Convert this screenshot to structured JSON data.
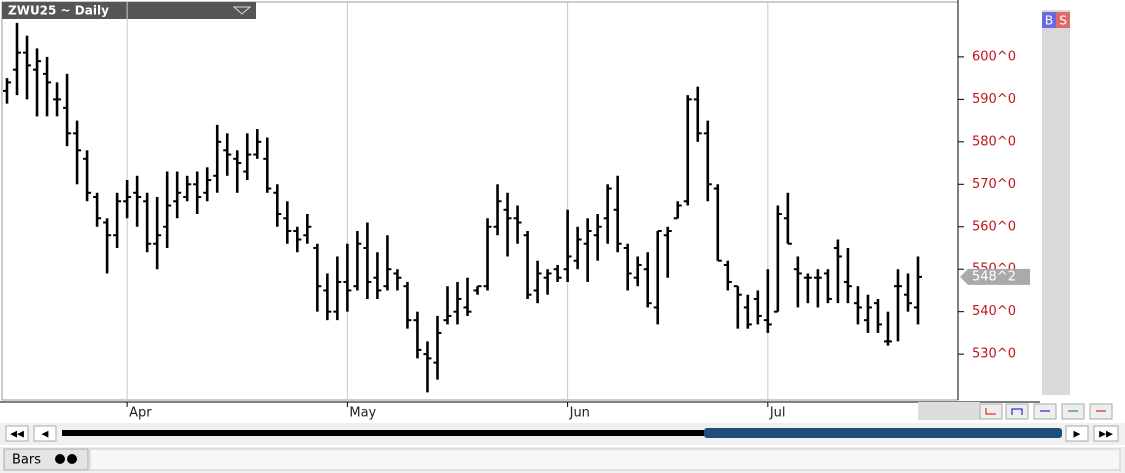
{
  "chart_data": {
    "type": "ohlc",
    "title": "ZWU25 ~ Daily",
    "categories": [
      null,
      null,
      null,
      null,
      null,
      null,
      null,
      null,
      null,
      null,
      null,
      null,
      "Apr",
      null,
      null,
      null,
      null,
      null,
      null,
      null,
      null,
      null,
      null,
      null,
      null,
      null,
      null,
      null,
      null,
      null,
      null,
      null,
      null,
      null,
      "May",
      null,
      null,
      null,
      null,
      null,
      null,
      null,
      null,
      null,
      null,
      null,
      null,
      null,
      null,
      null,
      null,
      null,
      null,
      null,
      null,
      null,
      "Jun",
      null,
      null,
      null,
      null,
      null,
      null,
      null,
      null,
      null,
      null,
      null,
      null,
      null,
      null,
      null,
      null,
      null,
      null,
      null,
      "Jul",
      null,
      null,
      null,
      null,
      null,
      null,
      null,
      null,
      null,
      null,
      null,
      null,
      null,
      null,
      null
    ],
    "open": [
      592,
      597,
      601,
      597,
      596,
      590,
      588,
      582,
      576,
      567,
      561,
      558,
      566,
      568,
      566,
      556,
      560,
      566,
      567,
      570,
      568,
      572,
      578,
      576,
      573,
      577,
      576,
      568,
      562,
      559,
      558,
      555,
      545,
      540,
      547,
      546,
      555,
      548,
      546,
      549,
      546,
      538,
      530,
      528,
      538,
      540,
      541,
      545,
      546,
      560,
      564,
      562,
      558,
      545,
      548,
      550,
      550,
      552,
      556,
      558,
      562,
      564,
      555,
      548,
      550,
      541,
      558,
      562,
      566,
      590,
      582,
      569,
      551,
      546,
      541,
      543,
      538,
      540,
      562,
      550,
      548,
      548,
      549,
      555,
      547,
      542,
      538,
      542,
      533,
      546,
      544,
      541
    ],
    "high": [
      595,
      608,
      605,
      602,
      600,
      594,
      596,
      585,
      578,
      568,
      562,
      568,
      571,
      572,
      568,
      567,
      573,
      573,
      572,
      573,
      574,
      584,
      582,
      578,
      582,
      583,
      581,
      570,
      566,
      560,
      563,
      556,
      549,
      553,
      556,
      559,
      561,
      554,
      558,
      550,
      547,
      540,
      533,
      539,
      546,
      547,
      548,
      546,
      562,
      570,
      568,
      565,
      559,
      552,
      550,
      551,
      564,
      560,
      562,
      563,
      570,
      572,
      556,
      553,
      554,
      559,
      560,
      566,
      591,
      593,
      585,
      570,
      552,
      546,
      544,
      545,
      550,
      565,
      568,
      553,
      549,
      550,
      550,
      557,
      555,
      546,
      544,
      543,
      540,
      550,
      549,
      553
    ],
    "low": [
      589,
      591,
      590,
      586,
      586,
      586,
      579,
      570,
      566,
      560,
      549,
      555,
      562,
      560,
      554,
      550,
      555,
      562,
      566,
      563,
      566,
      568,
      572,
      568,
      571,
      576,
      568,
      560,
      556,
      554,
      556,
      540,
      538,
      538,
      540,
      545,
      543,
      543,
      545,
      545,
      536,
      529,
      521,
      524,
      537,
      537,
      539,
      544,
      545,
      558,
      553,
      556,
      543,
      542,
      544,
      547,
      547,
      550,
      547,
      552,
      556,
      554,
      545,
      546,
      541,
      537,
      548,
      562,
      565,
      580,
      566,
      552,
      545,
      536,
      536,
      537,
      535,
      540,
      556,
      541,
      542,
      541,
      542,
      542,
      542,
      537,
      535,
      535,
      532,
      533,
      540,
      537
    ],
    "close": [
      594,
      601,
      598,
      599,
      594,
      590,
      582,
      578,
      568,
      562,
      558,
      566,
      567,
      567,
      556,
      558,
      565,
      568,
      570,
      567,
      571,
      580,
      577,
      575,
      577,
      580,
      569,
      563,
      559,
      557,
      560,
      546,
      540,
      547,
      545,
      556,
      547,
      545,
      550,
      548,
      538,
      531,
      529,
      535,
      539,
      543,
      540,
      546,
      560,
      566,
      562,
      561,
      544,
      549,
      549,
      548,
      553,
      557,
      559,
      560,
      569,
      556,
      549,
      551,
      542,
      559,
      559,
      565,
      590,
      582,
      570,
      552,
      547,
      544,
      537,
      539,
      537,
      563,
      556,
      549,
      548,
      548,
      543,
      553,
      546,
      541,
      541,
      537,
      533,
      546,
      542,
      548.2
    ],
    "ylim": [
      519.2,
      613.4
    ],
    "yticks": [
      {
        "value": 530,
        "label": "530^0"
      },
      {
        "value": 540,
        "label": "540^0"
      },
      {
        "value": 550,
        "label": "550^0"
      },
      {
        "value": 560,
        "label": "560^0"
      },
      {
        "value": 570,
        "label": "570^0"
      },
      {
        "value": 580,
        "label": "580^0"
      },
      {
        "value": 590,
        "label": "590^0"
      },
      {
        "value": 600,
        "label": "600^0"
      }
    ],
    "last_price": {
      "value": 548.2,
      "label": "548^2"
    },
    "color": "#000000"
  },
  "ui": {
    "buy": "B",
    "sell": "S",
    "mode": "Bars"
  }
}
